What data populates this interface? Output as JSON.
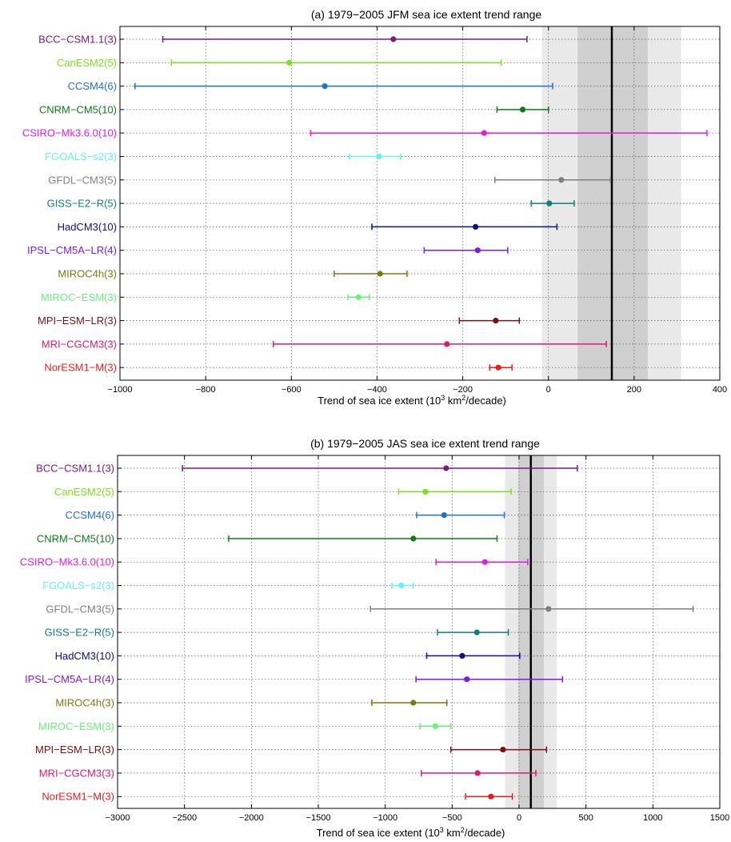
{
  "chart_data": [
    {
      "type": "errorbar",
      "title": "(a) 1979−2005 JFM sea ice extent trend range",
      "xlabel_prefix": "Trend of sea ice extent (10",
      "xlabel_sup1": "3",
      "xlabel_mid": " km",
      "xlabel_sup2": "2",
      "xlabel_suffix": "/decade)",
      "xlim": [
        -1000,
        400
      ],
      "xticks": [
        -1000,
        -800,
        -600,
        -400,
        -200,
        0,
        200,
        400
      ],
      "xtick_labels": [
        "−1000",
        "−800",
        "−600",
        "−400",
        "−200",
        "0",
        "200",
        "400"
      ],
      "grid": true,
      "observed": {
        "value": 148,
        "inner_band": [
          68,
          232
        ],
        "outer_band": [
          -15,
          310
        ]
      },
      "series": [
        {
          "name": "BCC−CSM1.1(3)",
          "color": "#7a1a82",
          "low": -900,
          "mean": -362,
          "high": -50
        },
        {
          "name": "CanESM2(5)",
          "color": "#7ee01e",
          "low": -880,
          "mean": -605,
          "high": -110
        },
        {
          "name": "CCSM4(6)",
          "color": "#1f6fd8",
          "low": -965,
          "mean": -522,
          "high": 10
        },
        {
          "name": "CNRM−CM5(10)",
          "color": "#0f7a18",
          "low": -120,
          "mean": -60,
          "high": 0
        },
        {
          "name": "CSIRO−Mk3.6.0(10)",
          "color": "#e21be0",
          "low": -555,
          "mean": -150,
          "high": 370
        },
        {
          "name": "FGOALS−s2(3)",
          "color": "#66f2f2",
          "low": -465,
          "mean": -395,
          "high": -345
        },
        {
          "name": "GFDL−CM3(5)",
          "color": "#808080",
          "low": -125,
          "mean": 30,
          "high": 145
        },
        {
          "name": "GISS−E2−R(5)",
          "color": "#0f7f7a",
          "low": -40,
          "mean": 2,
          "high": 60
        },
        {
          "name": "HadCM3(10)",
          "color": "#0c0f85",
          "low": -412,
          "mean": -170,
          "high": 20
        },
        {
          "name": "IPSL−CM5A−LR(4)",
          "color": "#7b1be6",
          "low": -290,
          "mean": -165,
          "high": -95
        },
        {
          "name": "MIROC4h(3)",
          "color": "#7a7a10",
          "low": -500,
          "mean": -393,
          "high": -330
        },
        {
          "name": "MIROC−ESM(3)",
          "color": "#66f27a",
          "low": -468,
          "mean": -443,
          "high": -418
        },
        {
          "name": "MPI−ESM−LR(3)",
          "color": "#7a0f0f",
          "low": -208,
          "mean": -123,
          "high": -68
        },
        {
          "name": "MRI−CGCM3(3)",
          "color": "#e21a6e",
          "low": -642,
          "mean": -237,
          "high": 135
        },
        {
          "name": "NorESM1−M(3)",
          "color": "#ee1a1a",
          "low": -137,
          "mean": -117,
          "high": -85
        }
      ]
    },
    {
      "type": "errorbar",
      "title": "(b) 1979−2005 JAS sea ice extent trend range",
      "xlabel_prefix": "Trend of sea ice extent (10",
      "xlabel_sup1": "3",
      "xlabel_mid": " km",
      "xlabel_sup2": "2",
      "xlabel_suffix": "/decade)",
      "xlim": [
        -3000,
        1500
      ],
      "xticks": [
        -3000,
        -2500,
        -2000,
        -1500,
        -1000,
        -500,
        0,
        500,
        1000,
        1500
      ],
      "xtick_labels": [
        "−3000",
        "−2500",
        "−2000",
        "−1500",
        "−1000",
        "−500",
        "0",
        "500",
        "1000",
        "1500"
      ],
      "grid": true,
      "observed": {
        "value": 88,
        "inner_band": [
          -5,
          185
        ],
        "outer_band": [
          -105,
          282
        ]
      },
      "series": [
        {
          "name": "BCC−CSM1.1(3)",
          "color": "#7a1a82",
          "low": -2515,
          "mean": -545,
          "high": 435
        },
        {
          "name": "CanESM2(5)",
          "color": "#7ee01e",
          "low": -900,
          "mean": -700,
          "high": -60
        },
        {
          "name": "CCSM4(6)",
          "color": "#1f6fd8",
          "low": -765,
          "mean": -560,
          "high": -110
        },
        {
          "name": "CNRM−CM5(10)",
          "color": "#0f7a18",
          "low": -2170,
          "mean": -790,
          "high": -165
        },
        {
          "name": "CSIRO−Mk3.6.0(10)",
          "color": "#e21be0",
          "low": -620,
          "mean": -255,
          "high": 65
        },
        {
          "name": "FGOALS−s2(3)",
          "color": "#66f2f2",
          "low": -950,
          "mean": -880,
          "high": -790
        },
        {
          "name": "GFDL−CM3(5)",
          "color": "#808080",
          "low": -1110,
          "mean": 220,
          "high": 1300
        },
        {
          "name": "GISS−E2−R(5)",
          "color": "#0f7f7a",
          "low": -610,
          "mean": -315,
          "high": -80
        },
        {
          "name": "HadCM3(10)",
          "color": "#0c0f85",
          "low": -690,
          "mean": -425,
          "high": 5
        },
        {
          "name": "IPSL−CM5A−LR(4)",
          "color": "#7b1be6",
          "low": -770,
          "mean": -390,
          "high": 325
        },
        {
          "name": "MIROC4h(3)",
          "color": "#7a7a10",
          "low": -1100,
          "mean": -790,
          "high": -540
        },
        {
          "name": "MIROC−ESM(3)",
          "color": "#66f27a",
          "low": -740,
          "mean": -625,
          "high": -510
        },
        {
          "name": "MPI−ESM−LR(3)",
          "color": "#7a0f0f",
          "low": -510,
          "mean": -120,
          "high": 205
        },
        {
          "name": "MRI−CGCM3(3)",
          "color": "#e21a6e",
          "low": -730,
          "mean": -310,
          "high": 125
        },
        {
          "name": "NorESM1−M(3)",
          "color": "#ee1a1a",
          "low": -400,
          "mean": -210,
          "high": -50
        }
      ]
    }
  ]
}
